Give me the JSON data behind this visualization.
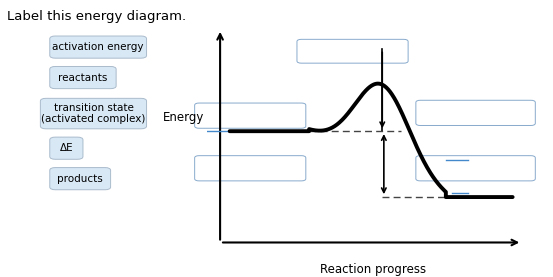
{
  "title": "Label this energy diagram.",
  "title_fontsize": 9.5,
  "xlabel": "Reaction progress",
  "ylabel": "Energy",
  "background_color": "#ffffff",
  "label_boxes": [
    {
      "text": "activation energy",
      "fx": 0.1,
      "fy": 0.8,
      "fw": 0.155,
      "fh": 0.06
    },
    {
      "text": "reactants",
      "fx": 0.1,
      "fy": 0.69,
      "fw": 0.1,
      "fh": 0.06
    },
    {
      "text": "transition state\n(activated complex)",
      "fx": 0.083,
      "fy": 0.545,
      "fw": 0.172,
      "fh": 0.09
    },
    {
      "text": "ΔE",
      "fx": 0.1,
      "fy": 0.435,
      "fw": 0.04,
      "fh": 0.06
    },
    {
      "text": "products",
      "fx": 0.1,
      "fy": 0.325,
      "fw": 0.09,
      "fh": 0.06
    }
  ],
  "answer_boxes": [
    {
      "fx": 0.545,
      "fy": 0.78,
      "fw": 0.185,
      "fh": 0.07
    },
    {
      "fx": 0.36,
      "fy": 0.545,
      "fw": 0.185,
      "fh": 0.075
    },
    {
      "fx": 0.36,
      "fy": 0.355,
      "fw": 0.185,
      "fh": 0.075
    },
    {
      "fx": 0.76,
      "fy": 0.555,
      "fw": 0.2,
      "fh": 0.075
    },
    {
      "fx": 0.76,
      "fy": 0.355,
      "fw": 0.2,
      "fh": 0.075
    }
  ],
  "curve_color": "#000000",
  "curve_lw": 2.8,
  "axis_color": "#000000",
  "dashed_color": "#444444",
  "blue_color": "#4488cc",
  "arrow_lw": 1.2,
  "label_box_color": "#d8e8f5",
  "label_box_edge": "#aabbcc",
  "answer_box_edge": "#88aacc"
}
